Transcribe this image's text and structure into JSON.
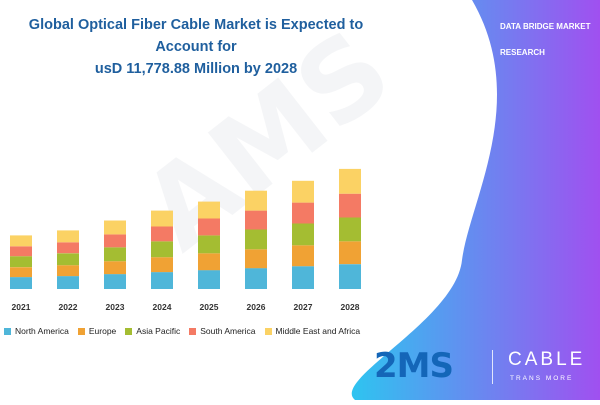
{
  "brand": {
    "line1": "DATA BRIDGE MARKET",
    "line2": "RESEARCH",
    "watermark": "AMS",
    "logo_ams": "2MS",
    "logo_cable": "CABLE",
    "logo_trans": "TRANS MORE"
  },
  "colors": {
    "title": "#1f5f9e",
    "panel_left": "#2ec4f0",
    "panel_right": "#a050f0",
    "logo_blue": "#1466b8"
  },
  "chart_data": {
    "type": "bar",
    "stacked": true,
    "title_line1": "Global Optical Fiber Cable Market is Expected to Account for",
    "title_line2": "usD 11,778.88 Million by 2028",
    "xlabel": "",
    "ylabel": "",
    "categories": [
      "2021",
      "2022",
      "2023",
      "2024",
      "2025",
      "2026",
      "2027",
      "2028"
    ],
    "series": [
      {
        "name": "North America",
        "color": "#4fb6d9",
        "values": [
          12,
          13,
          15,
          17,
          19,
          21,
          23,
          25
        ]
      },
      {
        "name": "Europe",
        "color": "#f0a234",
        "values": [
          10,
          11,
          13,
          15,
          17,
          19,
          21,
          23
        ]
      },
      {
        "name": "Asia Pacific",
        "color": "#a4bd32",
        "values": [
          11,
          12,
          14,
          16,
          18,
          20,
          22,
          24
        ]
      },
      {
        "name": "South America",
        "color": "#f47a64",
        "values": [
          10,
          11,
          13,
          15,
          17,
          19,
          21,
          24
        ]
      },
      {
        "name": "Middle East and Africa",
        "color": "#fbd264",
        "values": [
          11,
          12,
          14,
          16,
          17,
          20,
          22,
          25
        ]
      }
    ],
    "ylim": [
      0,
      140
    ],
    "grid": false,
    "legend_position": "bottom"
  }
}
